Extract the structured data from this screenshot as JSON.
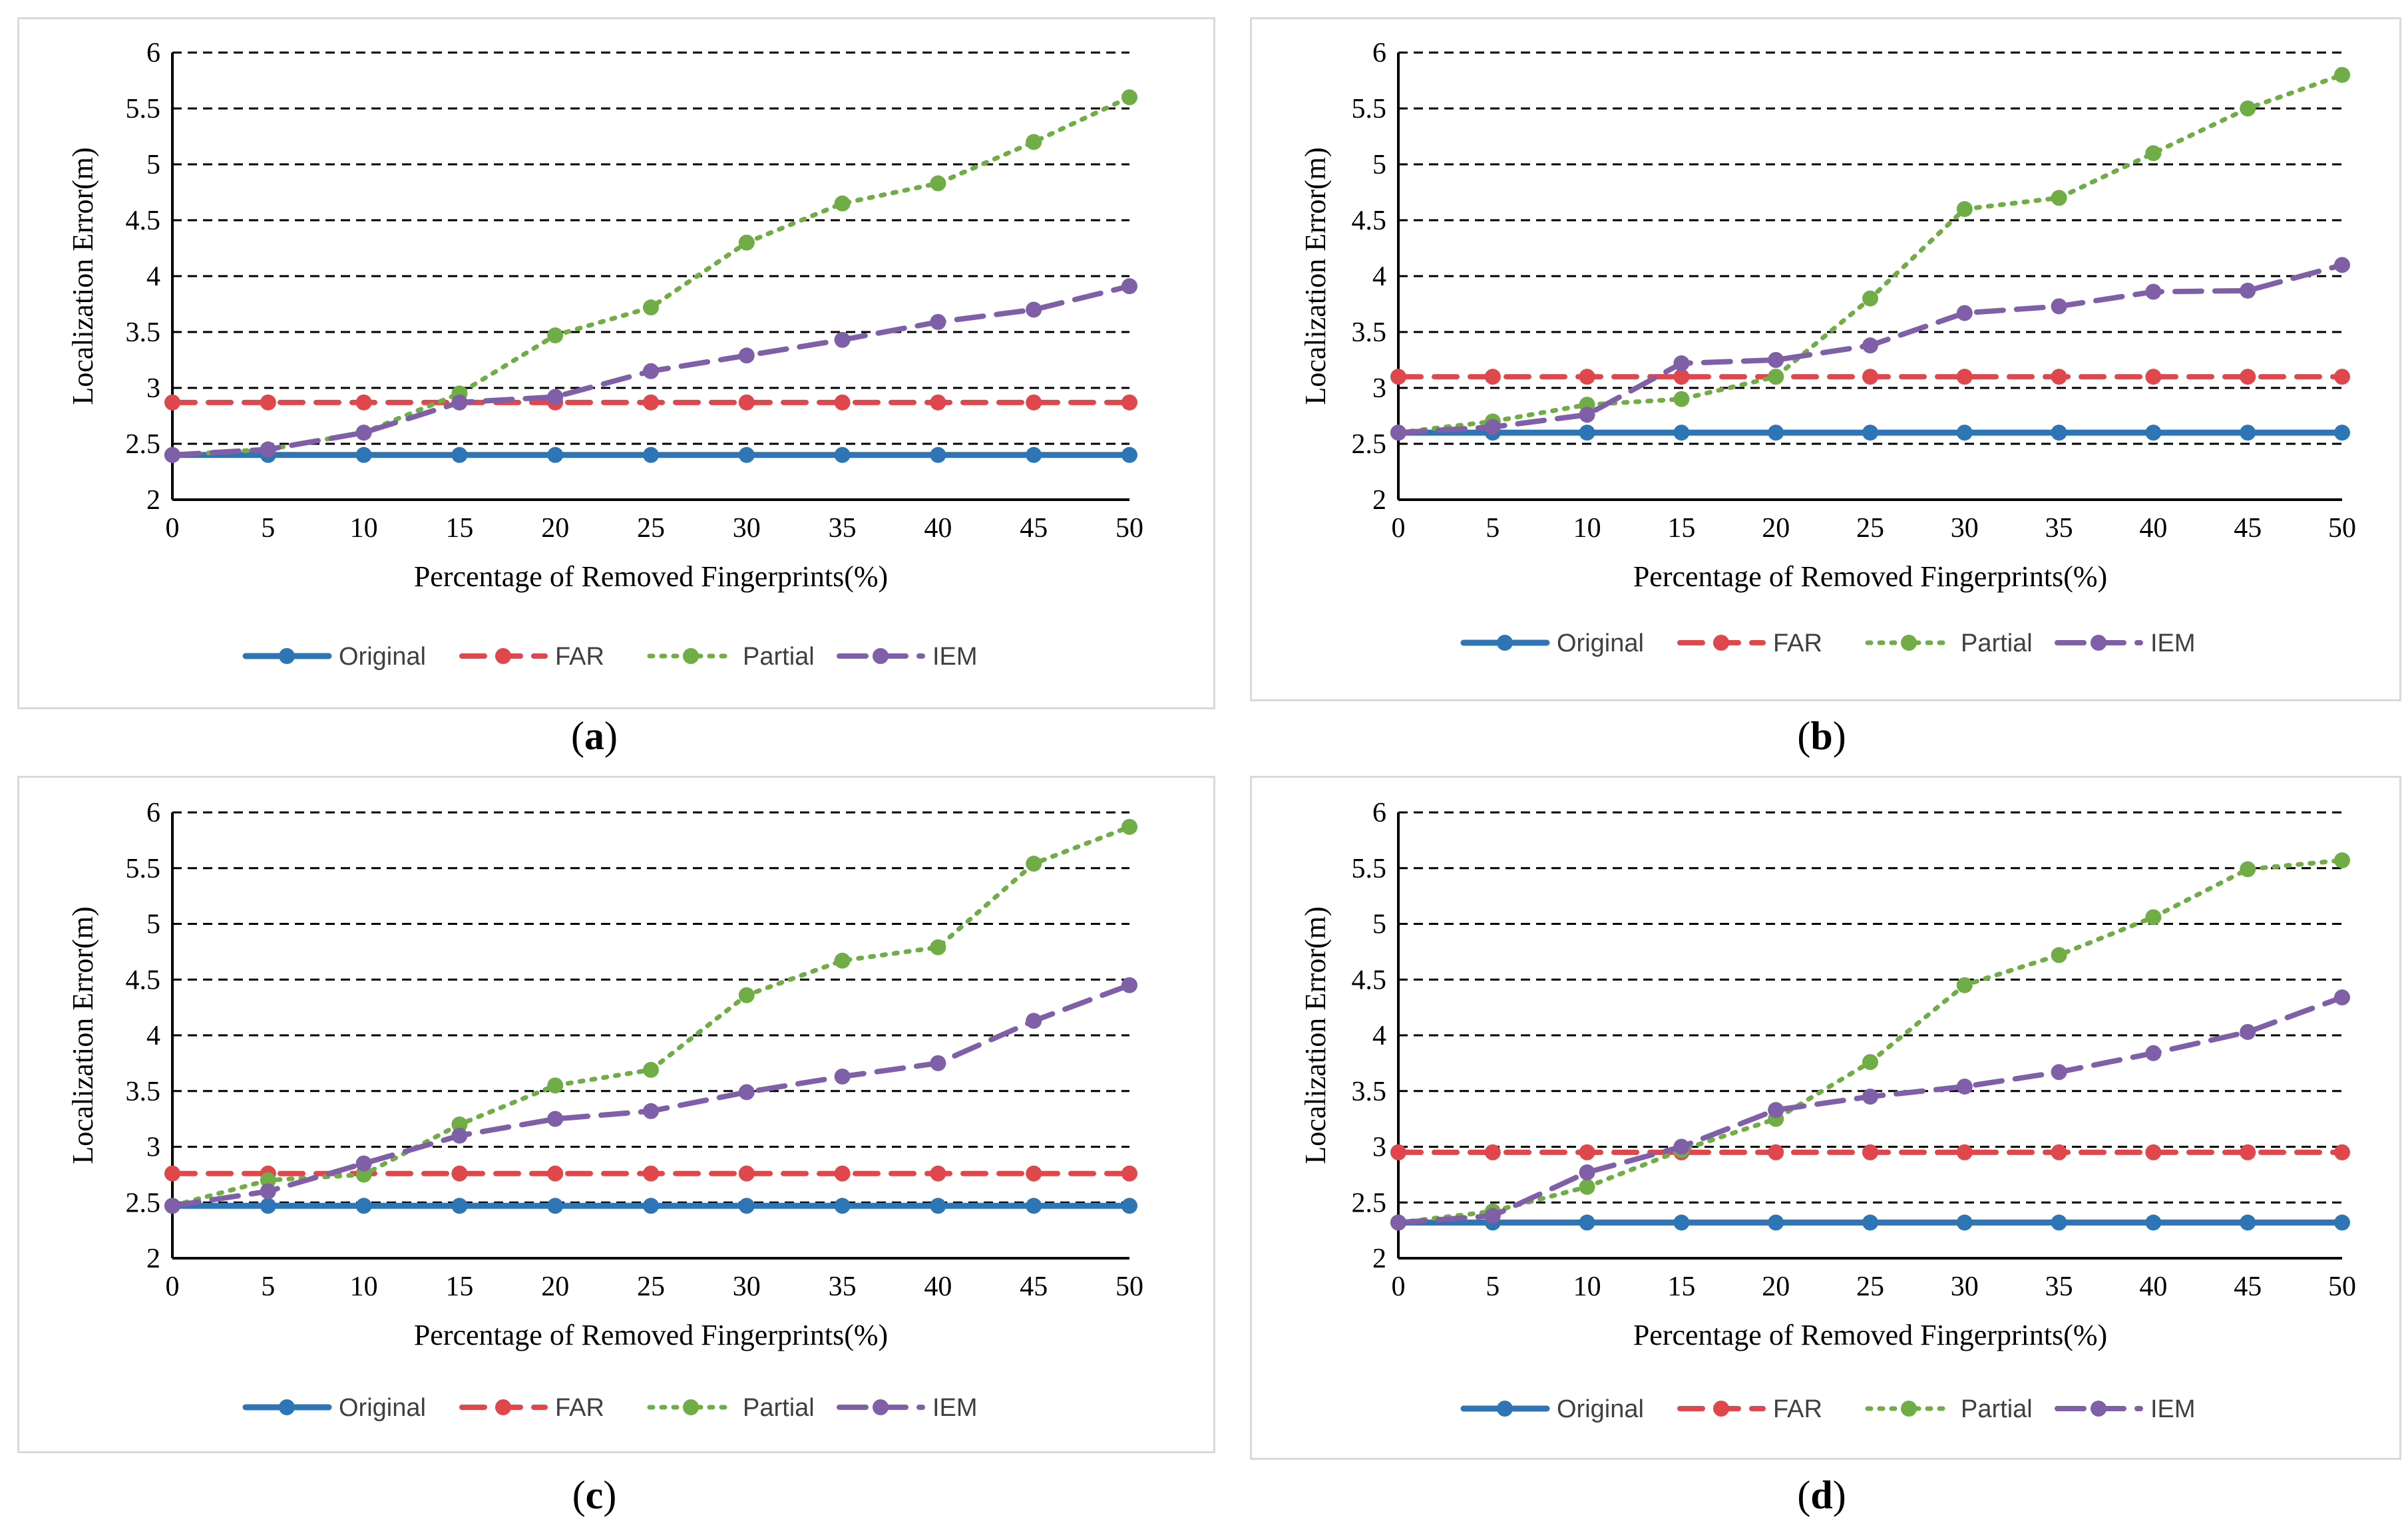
{
  "colors": {
    "Original": "#2e75b6",
    "FAR": "#e0474c",
    "Partial": "#70ad47",
    "IEM": "#7f5fa8"
  },
  "chart_data": [
    {
      "type": "line",
      "caption": "a",
      "xlabel": "Percentage of Removed Fingerprints(%)",
      "ylabel": "Localization Error(m)",
      "x": [
        0,
        5,
        10,
        15,
        20,
        25,
        30,
        35,
        40,
        45,
        50
      ],
      "xlim": [
        0,
        50
      ],
      "ylim": [
        2,
        6
      ],
      "yticks": [
        "2",
        "2.5",
        "3",
        "3.5",
        "4",
        "4.5",
        "5",
        "5.5",
        "6"
      ],
      "grid": "horizontal dashed",
      "legend": "bottom",
      "series": [
        {
          "name": "Original",
          "style": "solid",
          "values": [
            2.4,
            2.4,
            2.4,
            2.4,
            2.4,
            2.4,
            2.4,
            2.4,
            2.4,
            2.4,
            2.4
          ]
        },
        {
          "name": "FAR",
          "style": "dashed",
          "values": [
            2.87,
            2.87,
            2.87,
            2.87,
            2.87,
            2.87,
            2.87,
            2.87,
            2.87,
            2.87,
            2.87
          ]
        },
        {
          "name": "Partial",
          "style": "dotted",
          "values": [
            2.4,
            2.45,
            2.6,
            2.95,
            3.47,
            3.72,
            4.3,
            4.65,
            4.83,
            5.2,
            5.6
          ]
        },
        {
          "name": "IEM",
          "style": "long-dash",
          "values": [
            2.4,
            2.45,
            2.6,
            2.87,
            2.92,
            3.15,
            3.29,
            3.43,
            3.59,
            3.7,
            3.91
          ]
        }
      ]
    },
    {
      "type": "line",
      "caption": "b",
      "xlabel": "Percentage of Removed Fingerprints(%)",
      "ylabel": "Localization Error(m)",
      "x": [
        0,
        5,
        10,
        15,
        20,
        25,
        30,
        35,
        40,
        45,
        50
      ],
      "xlim": [
        0,
        50
      ],
      "ylim": [
        2,
        6
      ],
      "yticks": [
        "2",
        "2.5",
        "3",
        "3.5",
        "4",
        "4.5",
        "5",
        "5.5",
        "6"
      ],
      "grid": "horizontal dashed",
      "legend": "bottom",
      "series": [
        {
          "name": "Original",
          "style": "solid",
          "values": [
            2.6,
            2.6,
            2.6,
            2.6,
            2.6,
            2.6,
            2.6,
            2.6,
            2.6,
            2.6,
            2.6
          ]
        },
        {
          "name": "FAR",
          "style": "dashed",
          "values": [
            3.1,
            3.1,
            3.1,
            3.1,
            3.1,
            3.1,
            3.1,
            3.1,
            3.1,
            3.1,
            3.1
          ]
        },
        {
          "name": "Partial",
          "style": "dotted",
          "values": [
            2.6,
            2.7,
            2.85,
            2.9,
            3.1,
            3.8,
            4.6,
            4.7,
            5.1,
            5.5,
            5.8
          ]
        },
        {
          "name": "IEM",
          "style": "long-dash",
          "values": [
            2.6,
            2.65,
            2.76,
            3.22,
            3.25,
            3.38,
            3.67,
            3.73,
            3.86,
            3.87,
            4.1
          ]
        }
      ]
    },
    {
      "type": "line",
      "caption": "c",
      "xlabel": "Percentage of Removed Fingerprints(%)",
      "ylabel": "Localization Error(m)",
      "x": [
        0,
        5,
        10,
        15,
        20,
        25,
        30,
        35,
        40,
        45,
        50
      ],
      "xlim": [
        0,
        50
      ],
      "ylim": [
        2,
        6
      ],
      "yticks": [
        "2",
        "2.5",
        "3",
        "3.5",
        "4",
        "4.5",
        "5",
        "5.5",
        "6"
      ],
      "grid": "horizontal dashed",
      "legend": "bottom",
      "series": [
        {
          "name": "Original",
          "style": "solid",
          "values": [
            2.47,
            2.47,
            2.47,
            2.47,
            2.47,
            2.47,
            2.47,
            2.47,
            2.47,
            2.47,
            2.47
          ]
        },
        {
          "name": "FAR",
          "style": "dashed",
          "values": [
            2.76,
            2.76,
            2.76,
            2.76,
            2.76,
            2.76,
            2.76,
            2.76,
            2.76,
            2.76,
            2.76
          ]
        },
        {
          "name": "Partial",
          "style": "dotted",
          "values": [
            2.47,
            2.7,
            2.75,
            3.2,
            3.55,
            3.69,
            4.36,
            4.67,
            4.79,
            5.54,
            5.87
          ]
        },
        {
          "name": "IEM",
          "style": "long-dash",
          "values": [
            2.47,
            2.6,
            2.85,
            3.1,
            3.25,
            3.32,
            3.49,
            3.63,
            3.75,
            4.13,
            4.45
          ]
        }
      ]
    },
    {
      "type": "line",
      "caption": "d",
      "xlabel": "Percentage of Removed Fingerprints(%)",
      "ylabel": "Localization Error(m)",
      "x": [
        0,
        5,
        10,
        15,
        20,
        25,
        30,
        35,
        40,
        45,
        50
      ],
      "xlim": [
        0,
        50
      ],
      "ylim": [
        2,
        6
      ],
      "yticks": [
        "2",
        "2.5",
        "3",
        "3.5",
        "4",
        "4.5",
        "5",
        "5.5",
        "6"
      ],
      "grid": "horizontal dashed",
      "legend": "bottom",
      "series": [
        {
          "name": "Original",
          "style": "solid",
          "values": [
            2.32,
            2.32,
            2.32,
            2.32,
            2.32,
            2.32,
            2.32,
            2.32,
            2.32,
            2.32,
            2.32
          ]
        },
        {
          "name": "FAR",
          "style": "dashed",
          "values": [
            2.95,
            2.95,
            2.95,
            2.95,
            2.95,
            2.95,
            2.95,
            2.95,
            2.95,
            2.95,
            2.95
          ]
        },
        {
          "name": "Partial",
          "style": "dotted",
          "values": [
            2.32,
            2.42,
            2.64,
            2.97,
            3.25,
            3.76,
            4.45,
            4.72,
            5.06,
            5.49,
            5.57
          ]
        },
        {
          "name": "IEM",
          "style": "long-dash",
          "values": [
            2.32,
            2.38,
            2.77,
            3.0,
            3.33,
            3.45,
            3.54,
            3.67,
            3.84,
            4.03,
            4.34
          ]
        }
      ]
    }
  ]
}
